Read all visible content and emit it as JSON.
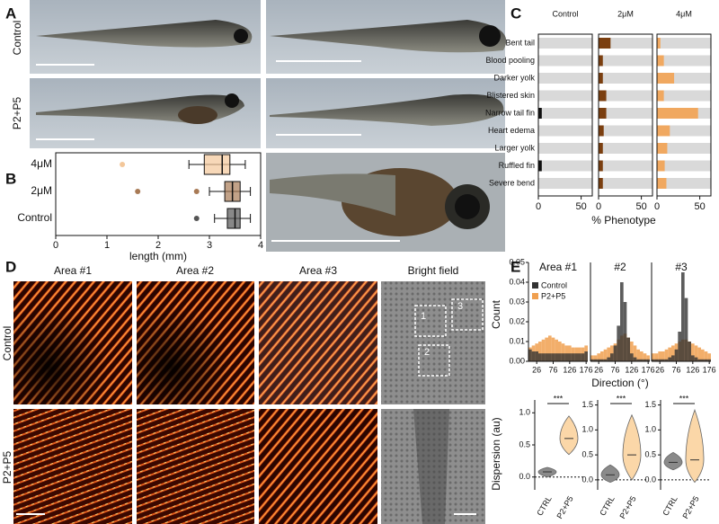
{
  "panel_letters": [
    "A",
    "B",
    "C",
    "D",
    "E"
  ],
  "panel_a": {
    "rows": [
      "Control",
      "P2+P5"
    ]
  },
  "panel_d": {
    "columns": [
      "Area #1",
      "Area #2",
      "Area #3",
      "Bright field"
    ],
    "rows": [
      "Control",
      "P2+P5"
    ],
    "boxes": [
      "1",
      "2",
      "3"
    ]
  },
  "chart_data": [
    {
      "type": "box",
      "xlabel": "length (mm)",
      "xlim": [
        0,
        4
      ],
      "xticks": [
        0,
        1,
        2,
        3,
        4
      ],
      "categories": [
        "4μM",
        "2μM",
        "Control"
      ],
      "boxes": [
        {
          "color": "#f3c79a",
          "whisker_low": 2.6,
          "q1": 2.9,
          "median": 3.25,
          "q3": 3.4,
          "whisker_high": 3.7,
          "outliers": [
            1.3
          ]
        },
        {
          "color": "#a87a55",
          "whisker_low": 3.0,
          "q1": 3.3,
          "median": 3.45,
          "q3": 3.6,
          "whisker_high": 3.8,
          "outliers": [
            1.6,
            2.75
          ]
        },
        {
          "color": "#555555",
          "whisker_low": 3.1,
          "q1": 3.35,
          "median": 3.5,
          "q3": 3.6,
          "whisker_high": 3.8,
          "outliers": [
            2.75
          ]
        }
      ]
    },
    {
      "type": "bar",
      "xlabel": "% Phenotype",
      "xlim": [
        0,
        63
      ],
      "xticks": [
        0,
        50
      ],
      "categories": [
        "Bent tail",
        "Blood pooling",
        "Darker yolk",
        "Blistered skin",
        "Narrow tail fin",
        "Heart edema",
        "Larger yolk",
        "Ruffled fin",
        "Severe bend"
      ],
      "series": [
        {
          "name": "Control",
          "color": "#111111",
          "values": [
            0,
            0,
            0,
            0,
            4,
            0,
            0,
            4,
            0
          ]
        },
        {
          "name": "2μM",
          "color": "#7b3f10",
          "values": [
            14,
            5,
            5,
            9,
            9,
            6,
            5,
            5,
            5
          ]
        },
        {
          "name": "4μM",
          "color": "#f0a860",
          "values": [
            4,
            8,
            20,
            8,
            48,
            15,
            12,
            9,
            11
          ]
        }
      ]
    },
    {
      "type": "histogram",
      "ylabel": "Count",
      "xlabel": "Direction (°)",
      "ylim": [
        0,
        0.05
      ],
      "yticks": [
        {
          "value": 0,
          "label": "0.00"
        },
        0.01,
        0.02,
        0.03,
        0.04,
        0.05
      ],
      "xlim": [
        1,
        181
      ],
      "xticks": [
        26,
        76,
        126,
        176
      ],
      "bins": [
        1,
        11,
        21,
        31,
        41,
        51,
        61,
        71,
        81,
        91,
        101,
        111,
        121,
        131,
        141,
        151,
        161,
        171,
        181
      ],
      "series": [
        {
          "name": "Control",
          "color": "#333333"
        },
        {
          "name": "P2+P5",
          "color": "#f0a050"
        }
      ],
      "panels": [
        {
          "title": "Area #1",
          "values": [
            [
              0.006,
              0.005,
              0.005,
              0.004,
              0.004,
              0.004,
              0.004,
              0.004,
              0.004,
              0.004,
              0.004,
              0.004,
              0.004,
              0.004,
              0.004,
              0.004,
              0.004,
              0.005
            ],
            [
              0.007,
              0.008,
              0.009,
              0.01,
              0.011,
              0.012,
              0.013,
              0.012,
              0.011,
              0.01,
              0.009,
              0.008,
              0.008,
              0.007,
              0.007,
              0.007,
              0.007,
              0.008
            ]
          ]
        },
        {
          "title": "#2",
          "values": [
            [
              0.001,
              0.001,
              0.001,
              0.001,
              0.001,
              0.002,
              0.004,
              0.008,
              0.018,
              0.04,
              0.03,
              0.012,
              0.004,
              0.002,
              0.001,
              0.001,
              0.001,
              0.001
            ],
            [
              0.003,
              0.003,
              0.004,
              0.005,
              0.006,
              0.007,
              0.008,
              0.009,
              0.011,
              0.013,
              0.014,
              0.012,
              0.01,
              0.008,
              0.006,
              0.005,
              0.004,
              0.003
            ]
          ]
        },
        {
          "title": "#3",
          "values": [
            [
              0.001,
              0.001,
              0.001,
              0.001,
              0.001,
              0.002,
              0.003,
              0.006,
              0.015,
              0.045,
              0.032,
              0.01,
              0.003,
              0.002,
              0.001,
              0.001,
              0.001,
              0.001
            ],
            [
              0.004,
              0.004,
              0.005,
              0.005,
              0.006,
              0.007,
              0.008,
              0.009,
              0.01,
              0.011,
              0.011,
              0.01,
              0.009,
              0.008,
              0.007,
              0.006,
              0.005,
              0.004
            ]
          ]
        }
      ]
    },
    {
      "type": "violin",
      "ylabel": "Dispersion (au)",
      "categories": [
        "CTRL",
        "P2+P5"
      ],
      "significance": "***",
      "colors": [
        "#8a8a8a",
        "#fbd7a8"
      ],
      "panels": [
        {
          "ylim": [
            -0.2,
            1.2
          ],
          "yticks": [
            {
              "value": 0,
              "label": "0.0"
            },
            0.5,
            {
              "value": 1,
              "label": "1.0"
            }
          ],
          "series": [
            {
              "min": 0.0,
              "median": 0.08,
              "max": 0.15
            },
            {
              "min": 0.35,
              "median": 0.6,
              "max": 0.95
            }
          ]
        },
        {
          "ylim": [
            -0.2,
            1.6
          ],
          "yticks": [
            {
              "value": 0,
              "label": "0.0"
            },
            0.5,
            {
              "value": 1,
              "label": "1.0"
            },
            1.5
          ],
          "series": [
            {
              "min": -0.05,
              "median": 0.1,
              "max": 0.3
            },
            {
              "min": 0.0,
              "median": 0.5,
              "max": 1.3
            }
          ]
        },
        {
          "ylim": [
            -0.2,
            1.6
          ],
          "yticks": [
            {
              "value": 0,
              "label": "0.0"
            },
            0.5,
            {
              "value": 1,
              "label": "1.0"
            },
            1.5
          ],
          "series": [
            {
              "min": 0.2,
              "median": 0.35,
              "max": 0.55
            },
            {
              "min": -0.05,
              "median": 0.4,
              "max": 1.4
            }
          ]
        }
      ]
    }
  ]
}
